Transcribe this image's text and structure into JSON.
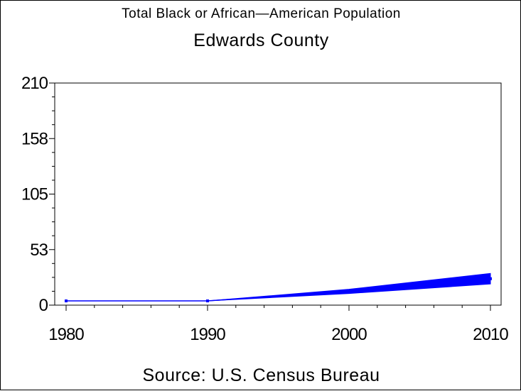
{
  "chart_data": {
    "type": "line",
    "title": "Total Black or African—American Population",
    "subtitle": "Edwards County",
    "source": "Source: U.S. Census Bureau",
    "xlabel": "",
    "ylabel": "",
    "x": [
      1980,
      1990,
      2000,
      2010
    ],
    "x_ticks": [
      "1980",
      "1990",
      "2000",
      "2010"
    ],
    "y_ticks": [
      "0",
      "53",
      "105",
      "158",
      "210"
    ],
    "ylim": [
      0,
      210
    ],
    "xlim": [
      1980,
      2010
    ],
    "series": [
      {
        "values": [
          4,
          4,
          13,
          25
        ]
      }
    ],
    "band_upper": [
      4,
      4,
      15,
      30
    ],
    "band_lower": [
      4,
      4,
      11,
      20
    ],
    "grid": false,
    "legend": "none",
    "colors": {
      "line": "#0000ff",
      "axis": "#000000",
      "background": "#ffffff"
    }
  }
}
